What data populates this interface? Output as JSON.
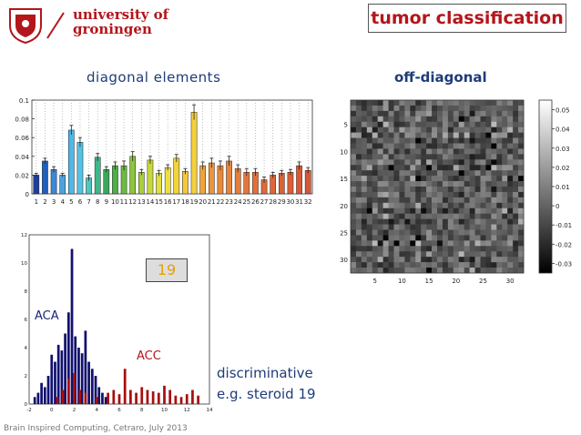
{
  "header": {
    "university_line1": "university of",
    "university_line2": "groningen",
    "title": "tumor classification",
    "brand_color": "#b3161b"
  },
  "labels": {
    "diagonal": "diagonal elements",
    "offdiagonal": "off-diagonal",
    "highlight": "19",
    "aca": "ACA",
    "acc": "ACC",
    "disc_line1": "discriminative",
    "disc_line2": "e.g. steroid 19"
  },
  "footer": {
    "text": "Brain Inspired Computing, Cetraro, July 2013"
  },
  "chart_data": [
    {
      "type": "bar",
      "categories": [
        "1",
        "2",
        "3",
        "4",
        "5",
        "6",
        "7",
        "8",
        "9",
        "10",
        "11",
        "12",
        "13",
        "14",
        "15",
        "16",
        "17",
        "18",
        "19",
        "20",
        "21",
        "22",
        "23",
        "24",
        "25",
        "26",
        "27",
        "28",
        "29",
        "30",
        "31",
        "32"
      ],
      "values": [
        0.02,
        0.035,
        0.026,
        0.02,
        0.068,
        0.055,
        0.017,
        0.039,
        0.026,
        0.03,
        0.03,
        0.04,
        0.023,
        0.036,
        0.022,
        0.028,
        0.038,
        0.024,
        0.087,
        0.03,
        0.033,
        0.03,
        0.035,
        0.027,
        0.023,
        0.023,
        0.015,
        0.02,
        0.022,
        0.023,
        0.03,
        0.025
      ],
      "errors": [
        0.002,
        0.003,
        0.003,
        0.002,
        0.005,
        0.005,
        0.003,
        0.004,
        0.003,
        0.004,
        0.005,
        0.005,
        0.003,
        0.004,
        0.003,
        0.003,
        0.004,
        0.003,
        0.008,
        0.004,
        0.005,
        0.005,
        0.005,
        0.004,
        0.004,
        0.004,
        0.003,
        0.003,
        0.003,
        0.003,
        0.004,
        0.003
      ],
      "colors": [
        "#1f3d9e",
        "#1f5fbf",
        "#3c88d6",
        "#4aa4e0",
        "#4fb8e8",
        "#52c4e6",
        "#4bc8c0",
        "#3cb88a",
        "#3aa85a",
        "#4db048",
        "#6abc3e",
        "#8cc63e",
        "#a8cf3c",
        "#c8d83a",
        "#e0e03c",
        "#eee03c",
        "#f2d43c",
        "#f4c83a",
        "#f4d03a",
        "#f0a43a",
        "#ec943a",
        "#e88a3a",
        "#e8843a",
        "#e67e3a",
        "#e4763a",
        "#e27038",
        "#e06a38",
        "#de6638",
        "#dc6236",
        "#da5e36",
        "#d85a34",
        "#d65634"
      ],
      "ylim": [
        0,
        0.1
      ],
      "yticks": [
        "0",
        "0.02",
        "0.04",
        "0.06",
        "0.08",
        "0.1"
      ],
      "grid": "vertical-dotted"
    },
    {
      "type": "heatmap",
      "size": 32,
      "xticks": [
        "5",
        "10",
        "15",
        "20",
        "25",
        "30"
      ],
      "yticks": [
        "5",
        "10",
        "15",
        "20",
        "25",
        "30"
      ],
      "colorbar_ticks": [
        "0.05",
        "0.04",
        "0.03",
        "0.02",
        "0.01",
        "0",
        "-0.01",
        "-0.02",
        "-0.03"
      ],
      "clim": [
        -0.035,
        0.055
      ],
      "colormap": "gray"
    },
    {
      "type": "bar",
      "series": [
        {
          "name": "ACA",
          "color": "#10106e",
          "x": [
            -1.5,
            -1.2,
            -0.9,
            -0.6,
            -0.3,
            0.0,
            0.3,
            0.6,
            0.9,
            1.2,
            1.5,
            1.8,
            2.1,
            2.4,
            2.7,
            3.0,
            3.3,
            3.6,
            3.9,
            4.2,
            4.5,
            4.8
          ],
          "values": [
            0.5,
            0.8,
            1.5,
            1.2,
            2.0,
            3.5,
            3.0,
            4.2,
            3.8,
            5.0,
            6.5,
            11.0,
            4.8,
            4.0,
            3.6,
            5.2,
            3.0,
            2.5,
            2.0,
            1.2,
            0.8,
            0.5
          ]
        },
        {
          "name": "ACC",
          "color": "#a80e0e",
          "x": [
            0.5,
            1.0,
            1.5,
            2.0,
            2.5,
            3.0,
            4.0,
            5.0,
            5.5,
            6.0,
            6.5,
            7.0,
            7.5,
            8.0,
            8.5,
            9.0,
            9.5,
            10.0,
            10.5,
            11.0,
            11.5,
            12.0,
            12.5,
            13.0
          ],
          "values": [
            0.5,
            1.0,
            1.8,
            2.2,
            1.0,
            0.8,
            0.5,
            0.8,
            1.0,
            0.7,
            2.5,
            1.0,
            0.8,
            1.2,
            1.0,
            0.9,
            0.8,
            1.3,
            1.0,
            0.6,
            0.5,
            0.7,
            1.0,
            0.6
          ]
        }
      ],
      "xlim": [
        -2,
        14
      ],
      "ylim": [
        0,
        12
      ],
      "xticks": [
        "-2",
        "0",
        "2",
        "4",
        "6",
        "8",
        "10",
        "12",
        "14"
      ],
      "yticks": [
        "0",
        "2",
        "4",
        "6",
        "8",
        "10",
        "12"
      ]
    }
  ]
}
